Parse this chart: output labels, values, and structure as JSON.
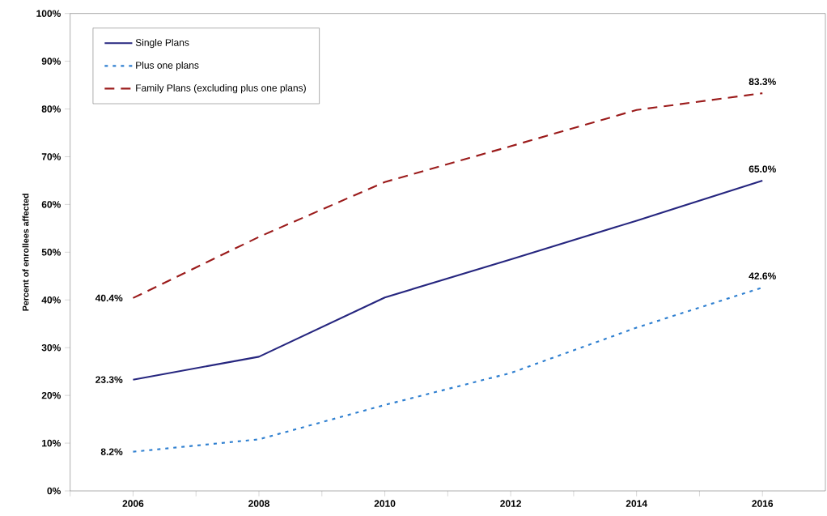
{
  "chart_data": {
    "type": "line",
    "ylabel": "Percent of enrollees affected",
    "x": [
      2006,
      2008,
      2010,
      2012,
      2014,
      2016
    ],
    "xlim": [
      2005,
      2017
    ],
    "xticks": [
      {
        "value": 2005,
        "label": null
      },
      {
        "value": 2006,
        "label": "2006"
      },
      {
        "value": 2007,
        "label": null
      },
      {
        "value": 2008,
        "label": "2008"
      },
      {
        "value": 2009,
        "label": null
      },
      {
        "value": 2010,
        "label": "2010"
      },
      {
        "value": 2011,
        "label": null
      },
      {
        "value": 2012,
        "label": "2012"
      },
      {
        "value": 2013,
        "label": null
      },
      {
        "value": 2014,
        "label": "2014"
      },
      {
        "value": 2015,
        "label": null
      },
      {
        "value": 2016,
        "label": "2016"
      }
    ],
    "ylim": [
      0,
      100
    ],
    "yticks": [
      {
        "value": 0,
        "label": "0%"
      },
      {
        "value": 10,
        "label": "10%"
      },
      {
        "value": 20,
        "label": "20%"
      },
      {
        "value": 30,
        "label": "30%"
      },
      {
        "value": 40,
        "label": "40%"
      },
      {
        "value": 50,
        "label": "50%"
      },
      {
        "value": 60,
        "label": "60%"
      },
      {
        "value": 70,
        "label": "70%"
      },
      {
        "value": 80,
        "label": "80%"
      },
      {
        "value": 90,
        "label": "90%"
      },
      {
        "value": 100,
        "label": "100%"
      }
    ],
    "series": [
      {
        "name": "Single Plans",
        "color": "#26267f",
        "line_style": "solid",
        "values": [
          23.3,
          28.1,
          40.5,
          48.5,
          56.6,
          65.0
        ],
        "value_labels": [
          "23.3%",
          null,
          null,
          null,
          null,
          "65.0%"
        ]
      },
      {
        "name": "Plus one plans",
        "color": "#2e7fd0",
        "line_style": "dotted",
        "values": [
          8.2,
          10.8,
          18.0,
          24.7,
          34.2,
          42.6
        ],
        "value_labels": [
          "8.2%",
          null,
          null,
          null,
          null,
          "42.6%"
        ]
      },
      {
        "name": "Family Plans (excluding plus one plans)",
        "color": "#9b1b1b",
        "line_style": "dashed",
        "values": [
          40.4,
          53.2,
          64.7,
          72.2,
          79.8,
          83.3
        ],
        "value_labels": [
          "40.4%",
          null,
          null,
          null,
          null,
          "83.3%"
        ]
      }
    ],
    "legend": "top left",
    "grid": false,
    "marker": "none"
  }
}
